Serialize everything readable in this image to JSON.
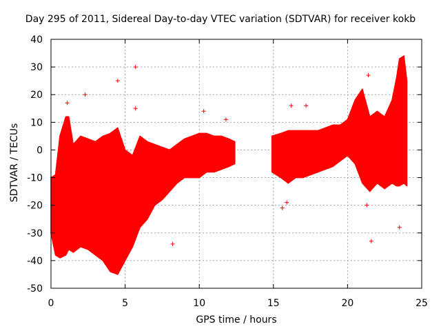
{
  "chart_data": {
    "type": "scatter",
    "title": "Day 295 of 2011, Sidereal Day-to-day VTEC variation (SDTVAR) for receiver kokb",
    "xlabel": "GPS time / hours",
    "ylabel": "SDTVAR / TECUs",
    "xlim": [
      0,
      25
    ],
    "ylim": [
      -50,
      40
    ],
    "xticks": [
      0,
      5,
      10,
      15,
      20,
      25
    ],
    "yticks": [
      -50,
      -40,
      -30,
      -20,
      -10,
      0,
      10,
      20,
      30,
      40
    ],
    "grid": true,
    "marker": "+",
    "color": "#ff0000",
    "envelope": {
      "description": "dense upper/lower bounds of the plotted point cloud",
      "x": [
        0,
        0.3,
        0.6,
        1.0,
        1.2,
        1.5,
        2.0,
        2.5,
        3.0,
        3.5,
        4.0,
        4.5,
        5.0,
        5.5,
        6.0,
        6.5,
        7.0,
        7.5,
        8.0,
        8.5,
        9.0,
        9.5,
        10.0,
        10.5,
        11.0,
        11.5,
        12.0,
        12.4,
        14.9,
        15.5,
        16.0,
        16.5,
        17.0,
        17.5,
        18.0,
        18.5,
        19.0,
        19.5,
        20.0,
        20.5,
        21.0,
        21.5,
        22.0,
        22.5,
        23.0,
        23.3,
        23.5,
        23.8,
        24.0
      ],
      "upper": [
        -10,
        -9,
        5,
        12,
        12,
        2,
        5,
        4,
        3,
        5,
        6,
        8,
        0,
        -2,
        5,
        3,
        2,
        1,
        0,
        2,
        4,
        5,
        6,
        6,
        5,
        5,
        4,
        3,
        5,
        6,
        7,
        7,
        7,
        7,
        7,
        8,
        9,
        9,
        11,
        18,
        22,
        12,
        14,
        12,
        18,
        26,
        33,
        34,
        25
      ],
      "lower": [
        -30,
        -38,
        -39,
        -38,
        -36,
        -37,
        -35,
        -36,
        -38,
        -40,
        -44,
        -45,
        -40,
        -35,
        -28,
        -25,
        -20,
        -18,
        -15,
        -12,
        -10,
        -10,
        -10,
        -8,
        -8,
        -7,
        -6,
        -5,
        -8,
        -10,
        -12,
        -10,
        -10,
        -9,
        -8,
        -7,
        -6,
        -4,
        -2,
        -5,
        -12,
        -15,
        -12,
        -14,
        -12,
        -13,
        -13,
        -12,
        -13
      ]
    },
    "outliers": [
      {
        "x": 1.1,
        "y": 17
      },
      {
        "x": 2.3,
        "y": 20
      },
      {
        "x": 4.5,
        "y": 25
      },
      {
        "x": 5.7,
        "y": 30
      },
      {
        "x": 5.7,
        "y": 15
      },
      {
        "x": 10.3,
        "y": 14
      },
      {
        "x": 11.8,
        "y": 11
      },
      {
        "x": 8.2,
        "y": -34
      },
      {
        "x": 15.6,
        "y": -21
      },
      {
        "x": 15.9,
        "y": -19
      },
      {
        "x": 16.2,
        "y": 16
      },
      {
        "x": 17.2,
        "y": 16
      },
      {
        "x": 21.4,
        "y": 27
      },
      {
        "x": 21.3,
        "y": -20
      },
      {
        "x": 21.6,
        "y": -33
      },
      {
        "x": 23.5,
        "y": -28
      }
    ]
  }
}
